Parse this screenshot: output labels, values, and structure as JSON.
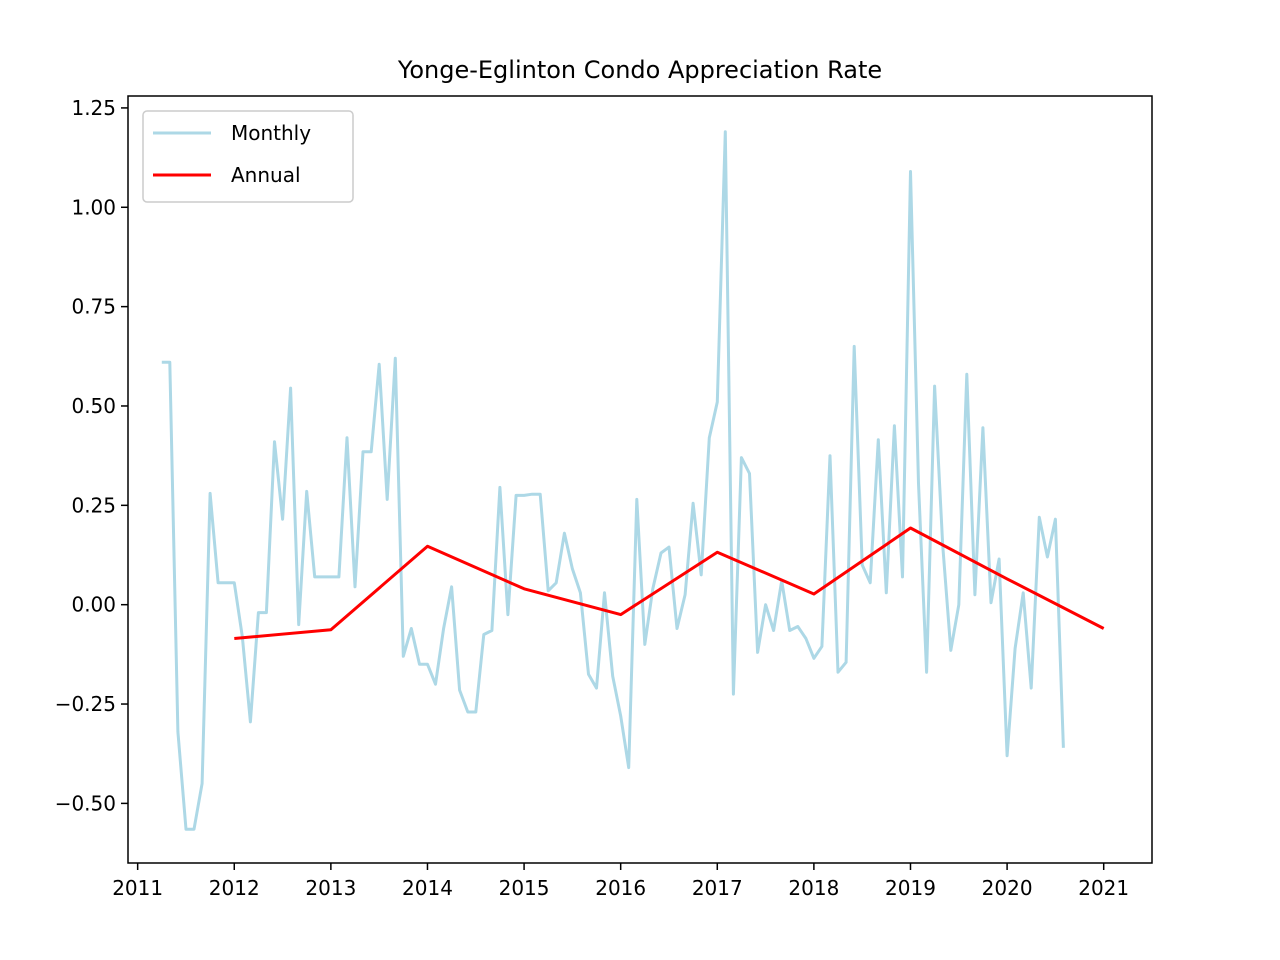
{
  "chart_data": {
    "type": "line",
    "title": "Yonge-Eglinton Condo Appreciation Rate",
    "xlabel": "",
    "ylabel": "",
    "xlim": [
      2010.9,
      2021.5
    ],
    "ylim": [
      -0.65,
      1.28
    ],
    "x_ticks": [
      "2011",
      "2012",
      "2013",
      "2014",
      "2015",
      "2016",
      "2017",
      "2018",
      "2019",
      "2020",
      "2021"
    ],
    "y_ticks": [
      "1.25",
      "1.00",
      "0.75",
      "0.50",
      "0.25",
      "0.00",
      "−0.25",
      "−0.50"
    ],
    "y_tick_values": [
      1.25,
      1.0,
      0.75,
      0.5,
      0.25,
      0.0,
      -0.25,
      -0.5
    ],
    "grid": false,
    "legend_position": "top-left",
    "series": [
      {
        "name": "Monthly",
        "color": "#add8e6",
        "x": [
          2011.25,
          2011.333,
          2011.417,
          2011.5,
          2011.583,
          2011.667,
          2011.75,
          2011.833,
          2011.917,
          2012.0,
          2012.083,
          2012.167,
          2012.25,
          2012.333,
          2012.417,
          2012.5,
          2012.583,
          2012.667,
          2012.75,
          2012.833,
          2012.917,
          2013.0,
          2013.083,
          2013.167,
          2013.25,
          2013.333,
          2013.417,
          2013.5,
          2013.583,
          2013.667,
          2013.75,
          2013.833,
          2013.917,
          2014.0,
          2014.083,
          2014.167,
          2014.25,
          2014.333,
          2014.417,
          2014.5,
          2014.583,
          2014.667,
          2014.75,
          2014.833,
          2014.917,
          2015.0,
          2015.083,
          2015.167,
          2015.25,
          2015.333,
          2015.417,
          2015.5,
          2015.583,
          2015.667,
          2015.75,
          2015.833,
          2015.917,
          2016.0,
          2016.083,
          2016.167,
          2016.25,
          2016.333,
          2016.417,
          2016.5,
          2016.583,
          2016.667,
          2016.75,
          2016.833,
          2016.917,
          2017.0,
          2017.083,
          2017.167,
          2017.25,
          2017.333,
          2017.417,
          2017.5,
          2017.583,
          2017.667,
          2017.75,
          2017.833,
          2017.917,
          2018.0,
          2018.083,
          2018.167,
          2018.25,
          2018.333,
          2018.417,
          2018.5,
          2018.583,
          2018.667,
          2018.75,
          2018.833,
          2018.917,
          2019.0,
          2019.083,
          2019.167,
          2019.25,
          2019.333,
          2019.417,
          2019.5,
          2019.583,
          2019.667,
          2019.75,
          2019.833,
          2019.917,
          2020.0,
          2020.083,
          2020.167,
          2020.25,
          2020.333,
          2020.417,
          2020.5,
          2020.583
        ],
        "values": [
          0.61,
          0.61,
          -0.32,
          -0.565,
          -0.565,
          -0.45,
          0.28,
          0.055,
          0.055,
          0.055,
          -0.08,
          -0.295,
          -0.02,
          -0.02,
          0.41,
          0.215,
          0.545,
          -0.05,
          0.285,
          0.07,
          0.07,
          0.07,
          0.07,
          0.42,
          0.045,
          0.385,
          0.385,
          0.605,
          0.265,
          0.62,
          -0.13,
          -0.06,
          -0.15,
          -0.15,
          -0.2,
          -0.06,
          0.045,
          -0.215,
          -0.27,
          -0.27,
          -0.075,
          -0.065,
          0.295,
          -0.025,
          0.275,
          0.275,
          0.278,
          0.278,
          0.035,
          0.055,
          0.18,
          0.09,
          0.03,
          -0.175,
          -0.21,
          0.03,
          -0.18,
          -0.28,
          -0.41,
          0.265,
          -0.1,
          0.04,
          0.13,
          0.145,
          -0.06,
          0.025,
          0.255,
          0.075,
          0.42,
          0.51,
          1.19,
          -0.225,
          0.37,
          0.33,
          -0.12,
          0.0,
          -0.065,
          0.06,
          -0.065,
          -0.055,
          -0.085,
          -0.135,
          -0.105,
          0.375,
          -0.17,
          -0.145,
          0.65,
          0.1,
          0.055,
          0.415,
          0.03,
          0.45,
          0.07,
          1.09,
          0.305,
          -0.17,
          0.55,
          0.15,
          -0.115,
          0.0,
          0.58,
          0.025,
          0.445,
          0.005,
          0.115,
          -0.38,
          -0.11,
          0.03,
          -0.21,
          0.22,
          0.12,
          0.215,
          -0.36
        ]
      },
      {
        "name": "Annual",
        "color": "#ff0000",
        "x": [
          2012.0,
          2013.0,
          2014.0,
          2015.0,
          2016.0,
          2017.0,
          2018.0,
          2019.0,
          2020.0,
          2021.0
        ],
        "values": [
          -0.085,
          -0.063,
          0.147,
          0.04,
          -0.025,
          0.132,
          0.027,
          0.193,
          0.065,
          -0.06
        ]
      }
    ]
  }
}
